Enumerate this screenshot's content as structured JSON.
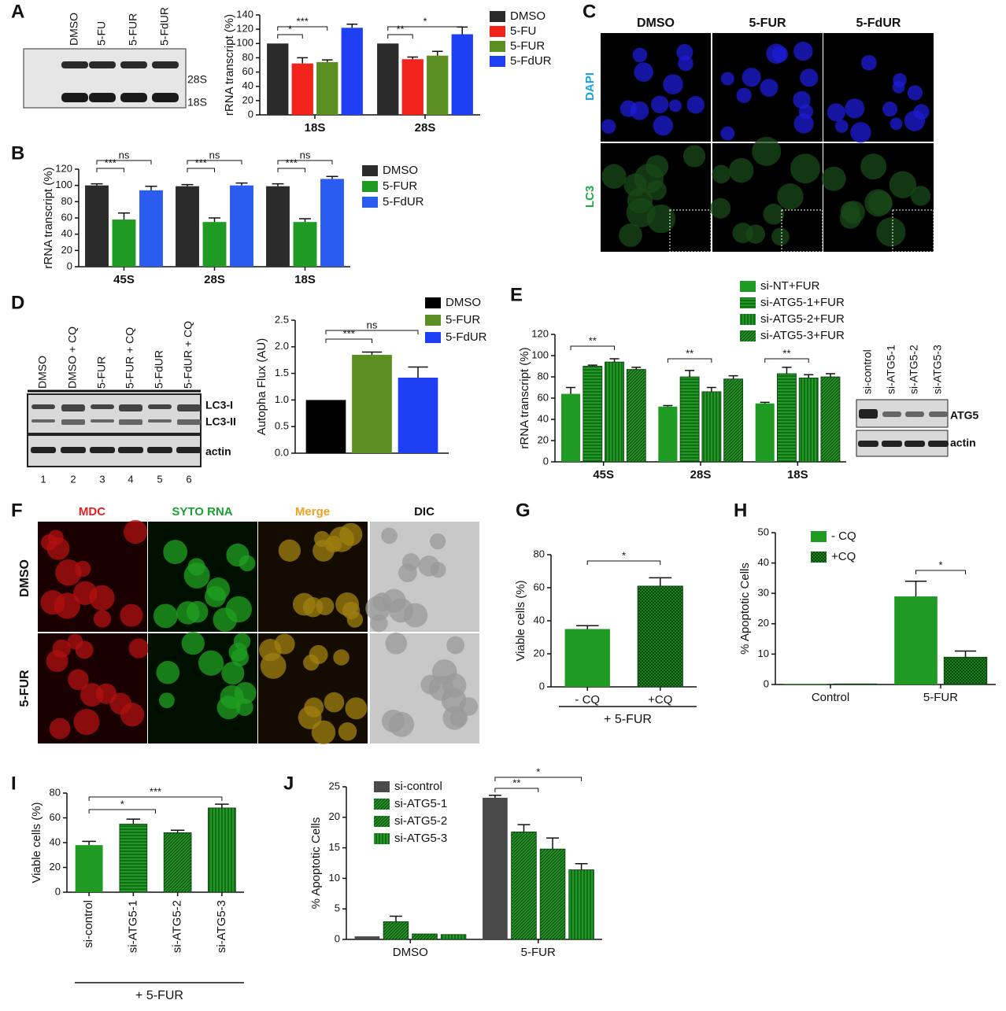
{
  "panel_labels": [
    "A",
    "B",
    "C",
    "D",
    "E",
    "F",
    "G",
    "H",
    "I",
    "J"
  ],
  "images": {
    "gel_a": {
      "lanes": [
        "DMSO",
        "5-FU",
        "5-FUR",
        "5-FdUR"
      ],
      "bands": [
        "28S",
        "18S"
      ]
    },
    "micrographs_c": {
      "columns": [
        "DMSO",
        "5-FUR",
        "5-FdUR"
      ],
      "rows": [
        "DAPI",
        "LC3"
      ]
    },
    "blot_d": {
      "lanes": [
        "DMSO",
        "DMSO + CQ",
        "5-FUR",
        "5-FUR + CQ",
        "5-FdUR",
        "5-FdUR + CQ"
      ],
      "bands": [
        "LC3-I",
        "LC3-II",
        "actin"
      ],
      "lane_numbers": [
        "1",
        "2",
        "3",
        "4",
        "5",
        "6"
      ]
    },
    "blot_e": {
      "lanes": [
        "si-control",
        "si-ATG5-1",
        "si-ATG5-2",
        "si-ATG5-3"
      ],
      "bands": [
        "ATG5",
        "actin"
      ]
    },
    "micrographs_f": {
      "columns": [
        "MDC",
        "SYTO RNA",
        "Merge",
        "DIC"
      ],
      "rows": [
        "DMSO",
        "5-FUR"
      ]
    }
  },
  "chart_data": [
    {
      "type": "bar",
      "ylabel": "rRNA transcript (%)",
      "categories": [
        "18S",
        "28S"
      ],
      "series": [
        {
          "name": "DMSO",
          "color": "#2b2b2b",
          "pattern": "solid",
          "values": [
            100,
            100
          ]
        },
        {
          "name": "5-FU",
          "color": "#f2231b",
          "pattern": "solid",
          "values": [
            72,
            78
          ],
          "errors": [
            8,
            3
          ]
        },
        {
          "name": "5-FUR",
          "color": "#5b8f22",
          "pattern": "solid",
          "values": [
            74,
            83
          ],
          "errors": [
            3,
            6
          ]
        },
        {
          "name": "5-FdUR",
          "color": "#1f3ff5",
          "pattern": "solid",
          "values": [
            122,
            113
          ],
          "errors": [
            5,
            10
          ]
        }
      ],
      "ylim": [
        0,
        140
      ],
      "yticks": [
        0,
        20,
        40,
        60,
        80,
        100,
        120,
        140
      ],
      "annotations": [
        "*",
        "***",
        "**",
        "*"
      ]
    },
    {
      "type": "bar",
      "ylabel": "rRNA transcript (%)",
      "categories": [
        "45S",
        "28S",
        "18S"
      ],
      "series": [
        {
          "name": "DMSO",
          "color": "#2b2b2b",
          "pattern": "solid",
          "values": [
            100,
            99,
            99
          ],
          "errors": [
            2,
            2,
            3
          ]
        },
        {
          "name": "5-FUR",
          "color": "#1f9a22",
          "pattern": "solid",
          "values": [
            58,
            55,
            55
          ],
          "errors": [
            8,
            5,
            4
          ]
        },
        {
          "name": "5-FdUR",
          "color": "#2a5cf0",
          "pattern": "solid",
          "values": [
            94,
            100,
            108
          ],
          "errors": [
            5,
            3,
            3
          ]
        }
      ],
      "ylim": [
        0,
        120
      ],
      "yticks": [
        0,
        20,
        40,
        60,
        80,
        100,
        120
      ],
      "annotations": [
        "***",
        "ns",
        "***",
        "ns",
        "***",
        "ns"
      ]
    },
    {
      "type": "bar",
      "ylabel": "Autopha Flux (AU)",
      "categories": [
        null
      ],
      "series": [
        {
          "name": "DMSO",
          "color": "#000000",
          "pattern": "solid",
          "values": [
            1.0
          ]
        },
        {
          "name": "5-FUR",
          "color": "#5b8f22",
          "pattern": "solid",
          "values": [
            1.85
          ],
          "errors": [
            0.05
          ]
        },
        {
          "name": "5-FdUR",
          "color": "#1f3ff5",
          "pattern": "solid",
          "values": [
            1.42
          ],
          "errors": [
            0.2
          ]
        }
      ],
      "ylim": [
        0,
        2.5
      ],
      "yticks": [
        {
          "value": 0,
          "label": "0.0"
        },
        0.5,
        {
          "value": 1,
          "label": "1.0"
        },
        1.5,
        {
          "value": 2,
          "label": "2.0"
        },
        2.5
      ],
      "annotations": [
        "***",
        "ns"
      ]
    },
    {
      "type": "bar",
      "ylabel": "rRNA transcript (%)",
      "categories": [
        "45S",
        "28S",
        "18S"
      ],
      "series": [
        {
          "name": "si-NT+FUR",
          "color": "#1f9a22",
          "pattern": "solid",
          "values": [
            64,
            52,
            55
          ],
          "errors": [
            6,
            1,
            1
          ]
        },
        {
          "name": "si-ATG5-1+FUR",
          "color": "#1f9a22",
          "pattern": "hlines",
          "values": [
            90,
            80,
            83
          ],
          "errors": [
            1,
            6,
            6
          ]
        },
        {
          "name": "si-ATG5-2+FUR",
          "color": "#1f9a22",
          "pattern": "vlines",
          "values": [
            94,
            66,
            79
          ],
          "errors": [
            3,
            4,
            3
          ]
        },
        {
          "name": "si-ATG5-3+FUR",
          "color": "#1f9a22",
          "pattern": "diag",
          "values": [
            87,
            78,
            80
          ],
          "errors": [
            2,
            3,
            3
          ]
        }
      ],
      "ylim": [
        0,
        120
      ],
      "yticks": [
        0,
        20,
        40,
        60,
        80,
        100,
        120
      ],
      "annotations": [
        "**",
        "**",
        "**"
      ]
    },
    {
      "type": "bar",
      "ylabel": "Viable cells (%)",
      "xlabel": "+ 5-FUR",
      "categories": [
        "- CQ",
        "+CQ"
      ],
      "values": [
        35,
        61
      ],
      "errors": [
        2,
        5
      ],
      "color": "#1f9a22",
      "patterns": [
        "solid",
        "dense"
      ],
      "ylim": [
        0,
        80
      ],
      "yticks": [
        0,
        20,
        40,
        60,
        80
      ],
      "annotations": [
        "*"
      ]
    },
    {
      "type": "bar",
      "ylabel": "% Apoptotic Cells",
      "categories": [
        "Control",
        "5-FUR"
      ],
      "series": [
        {
          "name": "- CQ",
          "color": "#1f9a22",
          "pattern": "solid",
          "values": [
            0.2,
            29
          ],
          "errors": [
            null,
            5
          ]
        },
        {
          "name": "+CQ",
          "color": "#1f9a22",
          "pattern": "dense",
          "values": [
            0.2,
            9
          ],
          "errors": [
            null,
            2
          ]
        }
      ],
      "ylim": [
        0,
        50
      ],
      "yticks": [
        0,
        10,
        20,
        30,
        40,
        50
      ],
      "annotations": [
        "*"
      ]
    },
    {
      "type": "bar",
      "ylabel": "Viable cells (%)",
      "xlabel": "+ 5-FUR",
      "categories": [
        "si-control",
        "si-ATG5-1",
        "si-ATG5-2",
        "si-ATG5-3"
      ],
      "values": [
        38,
        55,
        48,
        68
      ],
      "errors": [
        3,
        4,
        2,
        3
      ],
      "color": "#1f9a22",
      "patterns": [
        "solid",
        "hlines",
        "diag",
        "vlines"
      ],
      "ylim": [
        0,
        80
      ],
      "yticks": [
        0,
        20,
        40,
        60,
        80
      ],
      "annotations": [
        "*",
        "***"
      ]
    },
    {
      "type": "bar",
      "ylabel": "% Apoptotic Cells",
      "categories": [
        "DMSO",
        "5-FUR"
      ],
      "series": [
        {
          "name": "si-control",
          "color": "#4a4a4a",
          "pattern": "solid",
          "values": [
            0.5,
            23.2
          ],
          "errors": [
            null,
            0.4
          ]
        },
        {
          "name": "si-ATG5-1",
          "color": "#1f9a22",
          "pattern": "diag",
          "values": [
            2.9,
            17.6
          ],
          "errors": [
            0.9,
            1.2
          ]
        },
        {
          "name": "si-ATG5-2",
          "color": "#1f9a22",
          "pattern": "diag",
          "values": [
            0.9,
            14.8
          ],
          "errors": [
            null,
            1.8
          ]
        },
        {
          "name": "si-ATG5-3",
          "color": "#1f9a22",
          "pattern": "vlines",
          "values": [
            0.8,
            11.4
          ],
          "errors": [
            null,
            1.0
          ]
        }
      ],
      "ylim": [
        0,
        25
      ],
      "yticks": [
        0,
        5,
        10,
        15,
        20,
        25
      ],
      "annotations": [
        "**",
        "*"
      ]
    }
  ]
}
